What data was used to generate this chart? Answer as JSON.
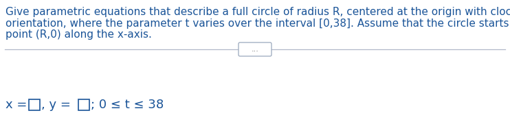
{
  "bg_color": "#ffffff",
  "text_color": "#1a5498",
  "paragraph_line1": "Give parametric equations that describe a full circle of radius R, centered at the origin with clockwise",
  "paragraph_line2": "orientation, where the parameter t varies over the interval [0,38]. Assume that the circle starts at the",
  "paragraph_line3": "point (R,0) along the x-axis.",
  "dots_text": "...",
  "font_size_para": 11.0,
  "font_size_answer": 13.0,
  "fig_width": 7.42,
  "fig_height": 1.81,
  "dpi": 100,
  "line_color": "#b0b8c8",
  "btn_border_color": "#9aa8bc",
  "answer_suffix": "; 0 ≤ t ≤ 38"
}
